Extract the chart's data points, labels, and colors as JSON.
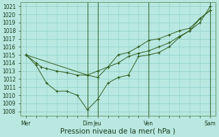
{
  "bg_color": "#b8e8e0",
  "grid_color": "#8ecfca",
  "line_color": "#2d5a1b",
  "marker_color": "#2d5a1b",
  "xlabel": "Pression niveau de la mer( hPa )",
  "ylim": [
    1007.5,
    1021.5
  ],
  "yticks": [
    1008,
    1009,
    1010,
    1011,
    1012,
    1013,
    1014,
    1015,
    1016,
    1017,
    1018,
    1019,
    1020,
    1021
  ],
  "xtick_labels": [
    "Mer",
    "Dim",
    "Jeu",
    "Ven",
    "Sam"
  ],
  "xtick_positions": [
    0,
    12,
    14,
    24,
    36
  ],
  "xlim": [
    -1,
    37
  ],
  "vlines_x": [
    12,
    14,
    24,
    36
  ],
  "line1_x": [
    0,
    2,
    3,
    4,
    6,
    8,
    10,
    12,
    14,
    16,
    18,
    20,
    22,
    24,
    26,
    28,
    30,
    32,
    34,
    36
  ],
  "line1_y": [
    1015.0,
    1014.0,
    1013.5,
    1013.3,
    1013.0,
    1012.8,
    1012.5,
    1012.5,
    1013.0,
    1013.5,
    1014.0,
    1014.8,
    1015.2,
    1015.5,
    1016.0,
    1016.5,
    1017.3,
    1018.0,
    1019.5,
    1020.5
  ],
  "line2_x": [
    0,
    2,
    4,
    6,
    8,
    10,
    12,
    14,
    16,
    18,
    20,
    22,
    24,
    26,
    28,
    30,
    32,
    34,
    36
  ],
  "line2_y": [
    1015.0,
    1013.7,
    1011.5,
    1010.5,
    1010.5,
    1010.0,
    1008.2,
    1009.5,
    1011.5,
    1012.2,
    1012.5,
    1014.8,
    1015.0,
    1015.3,
    1016.0,
    1017.2,
    1018.0,
    1019.0,
    1021.0
  ],
  "line3_x": [
    0,
    12,
    14,
    16,
    18,
    20,
    22,
    24,
    26,
    28,
    30,
    32,
    34,
    36
  ],
  "line3_y": [
    1015.0,
    1012.5,
    1012.2,
    1013.5,
    1015.0,
    1015.3,
    1016.0,
    1016.8,
    1017.0,
    1017.5,
    1018.0,
    1018.3,
    1019.5,
    1020.5
  ],
  "tick_fontsize": 5.5,
  "xlabel_fontsize": 7.5
}
